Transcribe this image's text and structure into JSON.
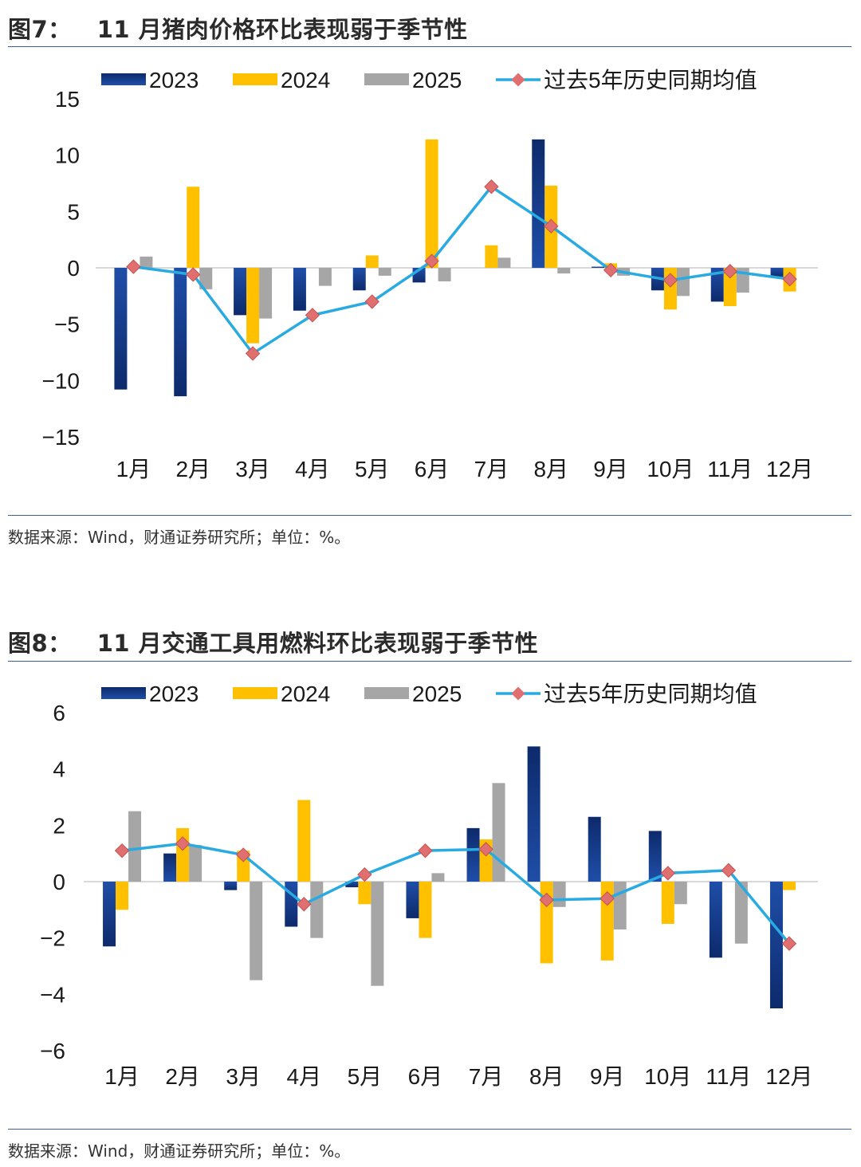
{
  "colors": {
    "s2023_top": "#0d2a6b",
    "s2023_bottom": "#1f4ea8",
    "s2024": "#ffc000",
    "s2025": "#a6a6a6",
    "avg_line": "#29abe2",
    "avg_marker": "#e07070",
    "rule": "#3a5fa0"
  },
  "panels": [
    {
      "title_num": "图7：",
      "title_text": "11 月猪肉价格环比表现弱于季节性",
      "source": "数据来源：Wind，财通证券研究所；单位：%。"
    },
    {
      "title_num": "图8：",
      "title_text": "11 月交通工具用燃料环比表现弱于季节性",
      "source": "数据来源：Wind，财通证券研究所；单位：%。"
    }
  ],
  "chart_data": [
    {
      "type": "bar",
      "title": "11 月猪肉价格环比表现弱于季节性",
      "categories": [
        "1月",
        "2月",
        "3月",
        "4月",
        "5月",
        "6月",
        "7月",
        "8月",
        "9月",
        "10月",
        "11月",
        "12月"
      ],
      "series": [
        {
          "name": "2023",
          "type": "bar",
          "values": [
            -10.8,
            -11.4,
            -4.2,
            -3.8,
            -2.0,
            -1.3,
            0.0,
            11.4,
            0.1,
            -2.0,
            -3.0,
            -0.8
          ]
        },
        {
          "name": "2024",
          "type": "bar",
          "values": [
            0.0,
            7.2,
            -6.7,
            0.0,
            1.1,
            11.4,
            2.0,
            7.3,
            0.4,
            -3.7,
            -3.4,
            -2.1
          ]
        },
        {
          "name": "2025",
          "type": "bar",
          "values": [
            1.0,
            -1.9,
            -4.5,
            -1.6,
            -0.7,
            -1.2,
            0.9,
            -0.5,
            -0.7,
            -2.5,
            -2.2,
            null
          ]
        },
        {
          "name": "过去5年历史同期均值",
          "type": "line",
          "values": [
            0.1,
            -0.6,
            -7.6,
            -4.2,
            -3.0,
            0.6,
            7.2,
            3.7,
            -0.2,
            -1.1,
            -0.3,
            -1.0
          ]
        }
      ],
      "yticks": [
        "15",
        "10",
        "5",
        "0",
        "−5",
        "−10",
        "−15"
      ],
      "ylim": [
        -15,
        15
      ],
      "xlabel": "",
      "ylabel": ""
    },
    {
      "type": "bar",
      "title": "11 月交通工具用燃料环比表现弱于季节性",
      "categories": [
        "1月",
        "2月",
        "3月",
        "4月",
        "5月",
        "6月",
        "7月",
        "8月",
        "9月",
        "10月",
        "11月",
        "12月"
      ],
      "series": [
        {
          "name": "2023",
          "type": "bar",
          "values": [
            -2.3,
            1.0,
            -0.3,
            -1.6,
            -0.2,
            -1.3,
            1.9,
            4.8,
            2.3,
            1.8,
            -2.7,
            -4.5
          ]
        },
        {
          "name": "2024",
          "type": "bar",
          "values": [
            -1.0,
            1.9,
            1.1,
            2.9,
            -0.8,
            -2.0,
            1.5,
            -2.9,
            -2.8,
            -1.5,
            null,
            -0.3
          ]
        },
        {
          "name": "2025",
          "type": "bar",
          "values": [
            2.5,
            1.3,
            -3.5,
            -2.0,
            -3.7,
            0.3,
            3.5,
            -0.9,
            -1.7,
            -0.8,
            -2.2,
            null
          ]
        },
        {
          "name": "过去5年历史同期均值",
          "type": "line",
          "values": [
            1.1,
            1.35,
            0.95,
            -0.8,
            0.25,
            1.1,
            1.15,
            -0.65,
            -0.6,
            0.3,
            0.4,
            -2.2
          ]
        }
      ],
      "yticks": [
        "6",
        "4",
        "2",
        "0",
        "−2",
        "−4",
        "−6"
      ],
      "ylim": [
        -6,
        6
      ],
      "xlabel": "",
      "ylabel": ""
    }
  ]
}
